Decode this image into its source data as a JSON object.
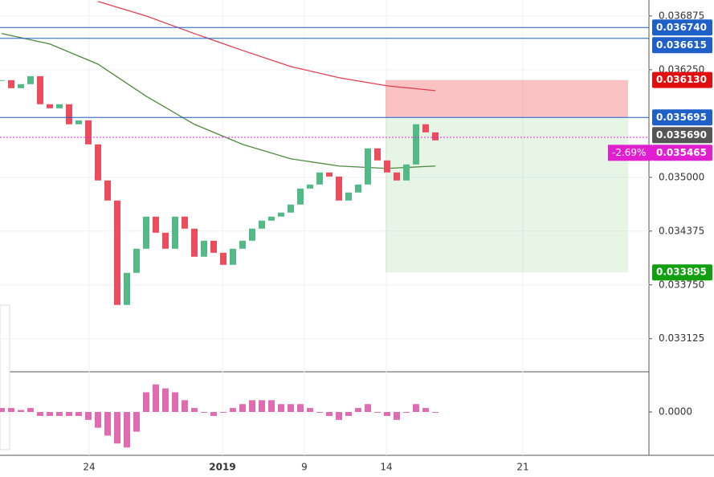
{
  "chart_data": {
    "type": "candlestick",
    "x_labels": [
      "24",
      "2019",
      "9",
      "14",
      "21"
    ],
    "ylim": [
      0.03274,
      0.03706
    ],
    "yticks": [
      0.036875,
      {
        "value": 0.03625,
        "label": "0.036250"
      },
      {
        "value": 0.035,
        "label": "0.035000"
      },
      0.034375,
      {
        "value": 0.03375,
        "label": "0.033750"
      },
      0.033125
    ],
    "closes": [
      0.036129,
      0.036035,
      0.036082,
      0.036175,
      0.035849,
      0.035802,
      0.035849,
      0.035616,
      0.035662,
      0.035383,
      0.034963,
      0.03473,
      0.033517,
      0.03389,
      0.03417,
      0.034543,
      0.034356,
      0.03417,
      0.034543,
      0.034403,
      0.034077,
      0.034263,
      0.034123,
      0.033983,
      0.03417,
      0.034263,
      0.034403,
      0.034496,
      0.034543,
      0.03459,
      0.034683,
      0.034869,
      0.034916,
      0.035056,
      0.035009,
      0.03473,
      0.034823,
      0.034916,
      0.035336,
      0.035196,
      0.035056,
      0.034963,
      0.035149,
      0.035616,
      0.035522,
      0.035429
    ],
    "up_color": "#53b987",
    "down_color": "#eb4d5c",
    "moving_averages": [
      {
        "color": "#e04050",
        "x": [
          10,
          15,
          20,
          25,
          30,
          35,
          40,
          45
        ],
        "values": [
          0.037043,
          0.036875,
          0.03667,
          0.036474,
          0.036287,
          0.036157,
          0.036063,
          0.036007
        ]
      },
      {
        "color": "#4e8a3e",
        "x": [
          0,
          5,
          10,
          15,
          20,
          25,
          30,
          35,
          40,
          45
        ],
        "values": [
          0.03667,
          0.036549,
          0.036315,
          0.035942,
          0.035616,
          0.035383,
          0.035215,
          0.035131,
          0.035103,
          0.035131
        ]
      }
    ],
    "price_labels": [
      {
        "value": 0.03674,
        "label": "0.036740",
        "color": "#1e5fc8",
        "line": "solid"
      },
      {
        "value": 0.036615,
        "label": "0.036615",
        "color": "#1e5fc8",
        "line": "solid"
      },
      {
        "value": 0.03613,
        "label": "0.036130",
        "color": "#e01010"
      },
      {
        "value": 0.035695,
        "label": "0.035695",
        "color": "#1e5fc8",
        "line": "solid"
      },
      {
        "value": 0.03569,
        "label": "0.035690",
        "color": "#555555"
      },
      {
        "value": 0.035465,
        "label": "0.035465",
        "prefix": "-2.69%",
        "color": "#e020d0",
        "line": "dotted"
      },
      {
        "value": 0.033895,
        "label": "0.033895",
        "color": "#13a010"
      }
    ],
    "oscillator": {
      "color": "#e06bb0",
      "ylim": [
        -0.00011,
        0.0001
      ],
      "yticks": [
        {
          "value": 0,
          "label": "0.0000"
        }
      ],
      "values": [
        1e-05,
        1e-05,
        5e-06,
        1e-05,
        -1e-05,
        -1e-05,
        -1e-05,
        -1e-05,
        -1e-05,
        -2e-05,
        -4e-05,
        -6e-05,
        -8e-05,
        -9e-05,
        -5e-05,
        5e-05,
        7e-05,
        6e-05,
        5e-05,
        3e-05,
        1e-05,
        0,
        -1e-05,
        0,
        1e-05,
        2e-05,
        3e-05,
        3e-05,
        3e-05,
        2e-05,
        2e-05,
        2e-05,
        1e-05,
        0,
        -1e-05,
        -2e-05,
        -1e-05,
        1e-05,
        2e-05,
        0,
        -1e-05,
        -2e-05,
        0,
        2e-05,
        1e-05,
        0
      ]
    }
  }
}
